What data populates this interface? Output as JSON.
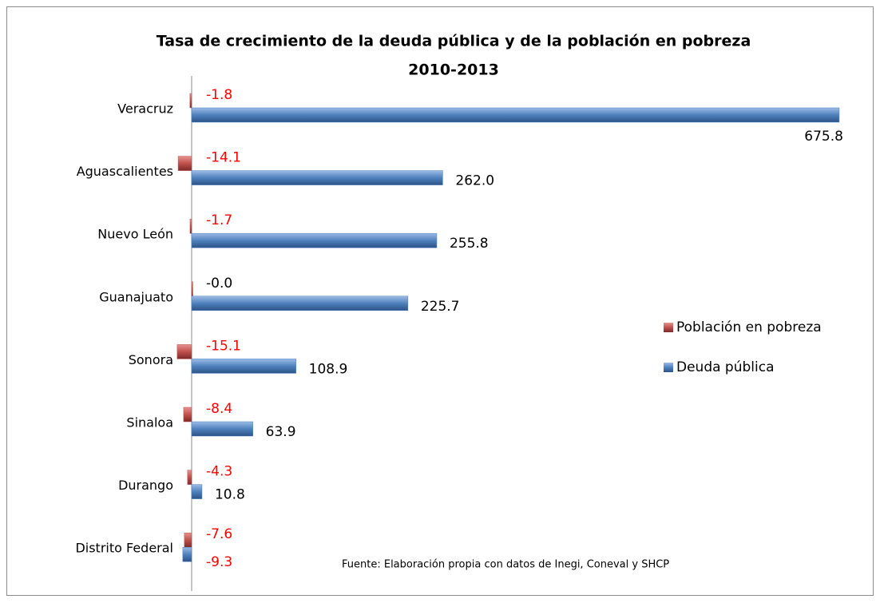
{
  "chart_data": {
    "type": "bar",
    "orientation": "horizontal",
    "title": [
      "Tasa de crecimiento de la deuda pública y de la población en pobreza",
      "2010-2013"
    ],
    "categories": [
      "Veracruz",
      "Aguascalientes",
      "Nuevo León",
      "Guanajuato",
      "Sonora",
      "Sinaloa",
      "Durango",
      "Distrito Federal"
    ],
    "series": [
      {
        "name": "Población en pobreza",
        "color": "#c0504d",
        "values": [
          -1.8,
          -14.1,
          -1.7,
          0,
          -15.1,
          -8.4,
          -4.3,
          -7.6
        ],
        "value_labels": [
          "-1.8",
          "-14.1",
          "-1.7",
          "-0.0",
          "-15.1",
          "-8.4",
          "-4.3",
          "-7.6"
        ]
      },
      {
        "name": "Deuda pública",
        "color": "#4f81bd",
        "values": [
          675.8,
          262,
          255.8,
          225.7,
          108.9,
          63.9,
          10.8,
          -9.3
        ],
        "value_labels": [
          "675.8",
          "262.0",
          "255.8",
          "225.7",
          "108.9",
          "63.9",
          "10.8",
          "-9.3"
        ]
      }
    ],
    "xlim": [
      -20,
      700
    ],
    "legend": "right",
    "label_color": "#000000",
    "negative_label_color": "#ff0000",
    "note": "Fuente: Elaboración propia con datos de Inegi, Coneval y SHCP"
  }
}
